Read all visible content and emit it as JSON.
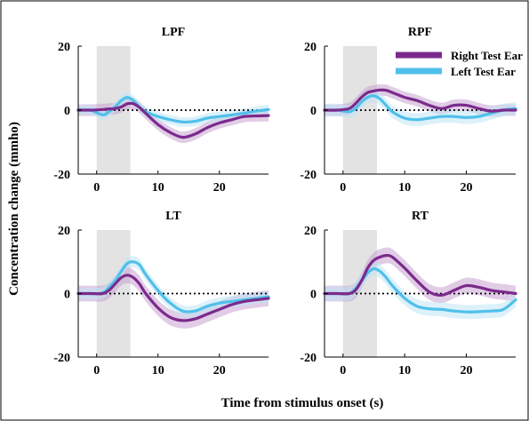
{
  "figure": {
    "xlabel": "Time from stimulus onset (s)",
    "ylabel": "Concentration change (mmho)"
  },
  "legend": {
    "placement": "top-right of RPF panel",
    "items": [
      {
        "label": "Right Test Ear",
        "color": "#7b2a8c"
      },
      {
        "label": "Left Test Ear",
        "color": "#4fc0ea"
      }
    ]
  },
  "colors": {
    "right": "#7b2a8c",
    "left": "#4fc0ea",
    "right_band": "#c9a3d2",
    "left_band": "#bfe6f6",
    "stimulus": "#e3e3e3"
  },
  "chart_data": [
    {
      "type": "line",
      "title": "LPF",
      "xlim": [
        -3,
        28
      ],
      "ylim": [
        -20,
        20
      ],
      "xticks": [
        0,
        10,
        20
      ],
      "yticks": [
        -20,
        0,
        20
      ],
      "stimulus_window": [
        0,
        5.5
      ],
      "zero_line": true,
      "x": [
        -3,
        -1,
        1,
        2,
        3,
        4,
        5,
        6,
        7,
        8,
        10,
        12,
        14,
        16,
        18,
        20,
        22,
        24,
        26,
        28
      ],
      "series": [
        {
          "name": "Right Test Ear",
          "values": [
            0,
            0,
            0.2,
            0.4,
            0.5,
            1,
            2,
            2,
            0.8,
            -1,
            -4.5,
            -7,
            -8.5,
            -7.5,
            -5.5,
            -4,
            -3,
            -2,
            -1.8,
            -1.7
          ],
          "band": 1.8
        },
        {
          "name": "Left Test Ear",
          "values": [
            0,
            0,
            -1.5,
            -0.5,
            1,
            3,
            4,
            3,
            1,
            -0.5,
            -2,
            -3,
            -3.7,
            -3.5,
            -2.5,
            -2,
            -1.5,
            -1,
            -0.3,
            0.2
          ],
          "band": 1.5
        }
      ]
    },
    {
      "type": "line",
      "title": "RPF",
      "xlim": [
        -3,
        28
      ],
      "ylim": [
        -20,
        20
      ],
      "xticks": [
        0,
        10,
        20
      ],
      "yticks": [
        -20,
        0,
        20
      ],
      "stimulus_window": [
        0,
        5.5
      ],
      "zero_line": true,
      "x": [
        -3,
        -1,
        1,
        2,
        3,
        4,
        5,
        6,
        7,
        8,
        10,
        12,
        14,
        16,
        18,
        20,
        22,
        24,
        26,
        28
      ],
      "series": [
        {
          "name": "Right Test Ear",
          "values": [
            0,
            0,
            0.5,
            2,
            4,
            5.5,
            6,
            6.3,
            6.2,
            5.5,
            4,
            3,
            1.5,
            0.5,
            1.5,
            1.5,
            0.5,
            -0.3,
            0,
            0
          ],
          "band": 1.8
        },
        {
          "name": "Left Test Ear",
          "values": [
            0,
            0,
            -0.5,
            0.5,
            2.5,
            4,
            4.5,
            3.5,
            1.5,
            -0.5,
            -2.5,
            -3,
            -2.5,
            -2,
            -2,
            -2.3,
            -2,
            -1,
            0,
            0.5
          ],
          "band": 2.0
        }
      ]
    },
    {
      "type": "line",
      "title": "LT",
      "xlim": [
        -3,
        28
      ],
      "ylim": [
        -20,
        20
      ],
      "xticks": [
        0,
        10,
        20
      ],
      "yticks": [
        -20,
        0,
        20
      ],
      "stimulus_window": [
        0,
        5.5
      ],
      "zero_line": true,
      "x": [
        -3,
        -1,
        1,
        2,
        3,
        4,
        5,
        6,
        7,
        8,
        10,
        12,
        14,
        16,
        18,
        20,
        22,
        24,
        26,
        28
      ],
      "series": [
        {
          "name": "Right Test Ear",
          "values": [
            0,
            0,
            0,
            1,
            3,
            5,
            5.8,
            5,
            3,
            0,
            -4.5,
            -7.5,
            -8.5,
            -8,
            -6.5,
            -5,
            -3.5,
            -2.5,
            -2,
            -1.5
          ],
          "band": 2.5
        },
        {
          "name": "Left Test Ear",
          "values": [
            0,
            0,
            0.2,
            2,
            4,
            7,
            9.5,
            10,
            9,
            6,
            1,
            -3,
            -5.5,
            -5.5,
            -4,
            -3,
            -2.5,
            -2,
            -1.5,
            -1
          ],
          "band": 1.8
        }
      ]
    },
    {
      "type": "line",
      "title": "RT",
      "xlim": [
        -3,
        28
      ],
      "ylim": [
        -20,
        20
      ],
      "xticks": [
        0,
        10,
        20
      ],
      "yticks": [
        -20,
        0,
        20
      ],
      "stimulus_window": [
        0,
        5.5
      ],
      "zero_line": true,
      "x": [
        -3,
        -1,
        1,
        2,
        3,
        4,
        5,
        6,
        7,
        8,
        10,
        12,
        14,
        16,
        18,
        20,
        22,
        24,
        26,
        28
      ],
      "series": [
        {
          "name": "Right Test Ear",
          "values": [
            0,
            0,
            0,
            1,
            4,
            8,
            10.5,
            11.5,
            12,
            11.5,
            8,
            4,
            0.5,
            -0.5,
            1,
            2.5,
            2,
            1,
            0.5,
            0
          ],
          "band": 2.5
        },
        {
          "name": "Left Test Ear",
          "values": [
            0,
            0,
            0,
            1.5,
            4,
            6.5,
            7.8,
            7,
            5,
            2.5,
            -1.5,
            -4,
            -4.8,
            -5,
            -5.5,
            -5.8,
            -5.7,
            -5.5,
            -5,
            -2
          ],
          "band": 2.2
        }
      ]
    }
  ]
}
